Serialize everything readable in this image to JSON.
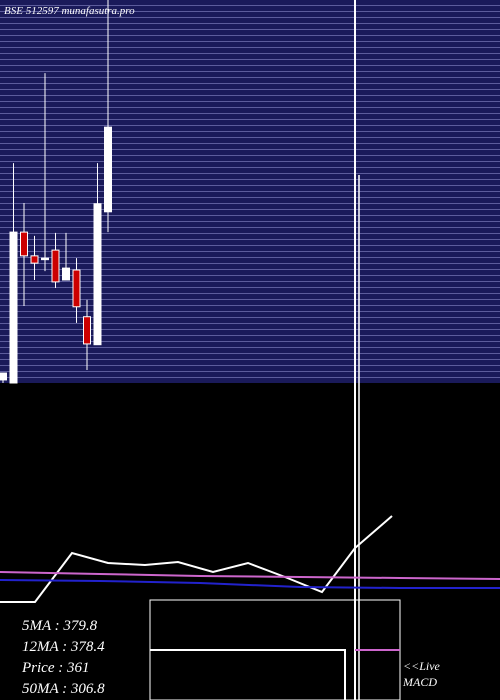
{
  "chart_data": {
    "type": "candlestick",
    "title": "BSE 512597 munafasutra.pro",
    "ylim": [
      300,
      400
    ],
    "up_color": "#ffffff",
    "down_color": "#cc0000",
    "open": [
      300.8,
      300,
      339.4,
      333.2,
      332.4,
      334.7,
      326.9,
      329.5,
      317.3,
      310,
      344.7
    ],
    "high": [
      302.6,
      357.4,
      347,
      338.4,
      380.9,
      339.2,
      339.2,
      332.6,
      321.7,
      357.4,
      400
    ],
    "low": [
      300,
      300,
      320.1,
      326.9,
      329.2,
      324.8,
      326.9,
      315.7,
      303.4,
      310,
      339.4
    ],
    "close": [
      302.6,
      339.4,
      333.2,
      331.3,
      332.6,
      326.4,
      330,
      319.9,
      310.2,
      346.8,
      366.8
    ],
    "lower_panel": {
      "type": "line",
      "xlim": [
        0,
        500
      ],
      "ylim": [
        0,
        200
      ],
      "series": [
        {
          "color": "#ffffff",
          "x": [
            0,
            35,
            72,
            108,
            145,
            178,
            213,
            248,
            285,
            322,
            355,
            392
          ],
          "values": [
            98,
            98,
            147,
            137,
            135,
            138,
            128,
            137,
            123,
            108,
            152,
            184
          ]
        },
        {
          "color": "#cc66cc",
          "x": [
            0,
            100,
            200,
            300,
            400,
            500
          ],
          "values": [
            128,
            126,
            124,
            123,
            122,
            121
          ]
        },
        {
          "color": "#2222cc",
          "x": [
            0,
            100,
            200,
            300,
            400,
            500
          ],
          "values": [
            120,
            119,
            117,
            113,
            112,
            112
          ]
        }
      ]
    },
    "legend_lines": [
      "5MA : 379.8",
      "12MA : 378.4",
      "Price  : 361",
      "50MA : 306.8"
    ],
    "live_label": "<<Live",
    "macd_label": "MACD"
  }
}
